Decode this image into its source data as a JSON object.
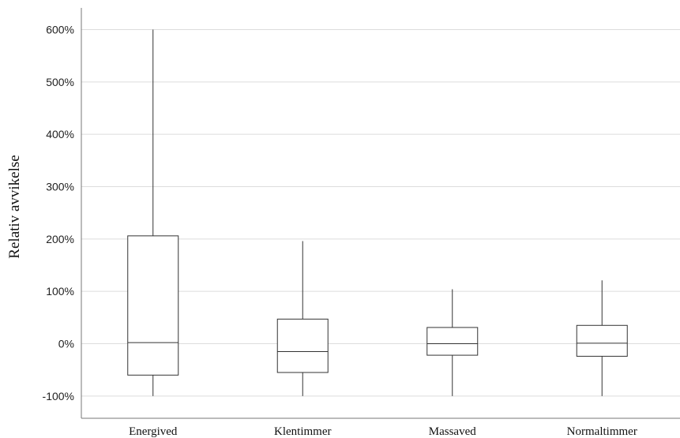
{
  "chart_data": {
    "type": "boxplot",
    "title": "",
    "xlabel": "",
    "ylabel": "Relativ avvikelse",
    "y_unit": "%",
    "ylim": [
      -140,
      640
    ],
    "yticks": [
      -100,
      0,
      100,
      200,
      300,
      400,
      500,
      600
    ],
    "ytick_labels": [
      "-100%",
      "0%",
      "100%",
      "200%",
      "300%",
      "400%",
      "500%",
      "600%"
    ],
    "grid": true,
    "legend": "none",
    "categories": [
      "Energived",
      "Klentimmer",
      "Massaved",
      "Normaltimmer"
    ],
    "series": [
      {
        "category": "Energived",
        "min": -100,
        "q1": -60,
        "median": 2,
        "q3": 206,
        "max": 600
      },
      {
        "category": "Klentimmer",
        "min": -100,
        "q1": -55,
        "median": -15,
        "q3": 47,
        "max": 196
      },
      {
        "category": "Massaved",
        "min": -100,
        "q1": -22,
        "median": 0,
        "q3": 31,
        "max": 104
      },
      {
        "category": "Normaltimmer",
        "min": -100,
        "q1": -24,
        "median": 1,
        "q3": 35,
        "max": 121
      }
    ]
  }
}
